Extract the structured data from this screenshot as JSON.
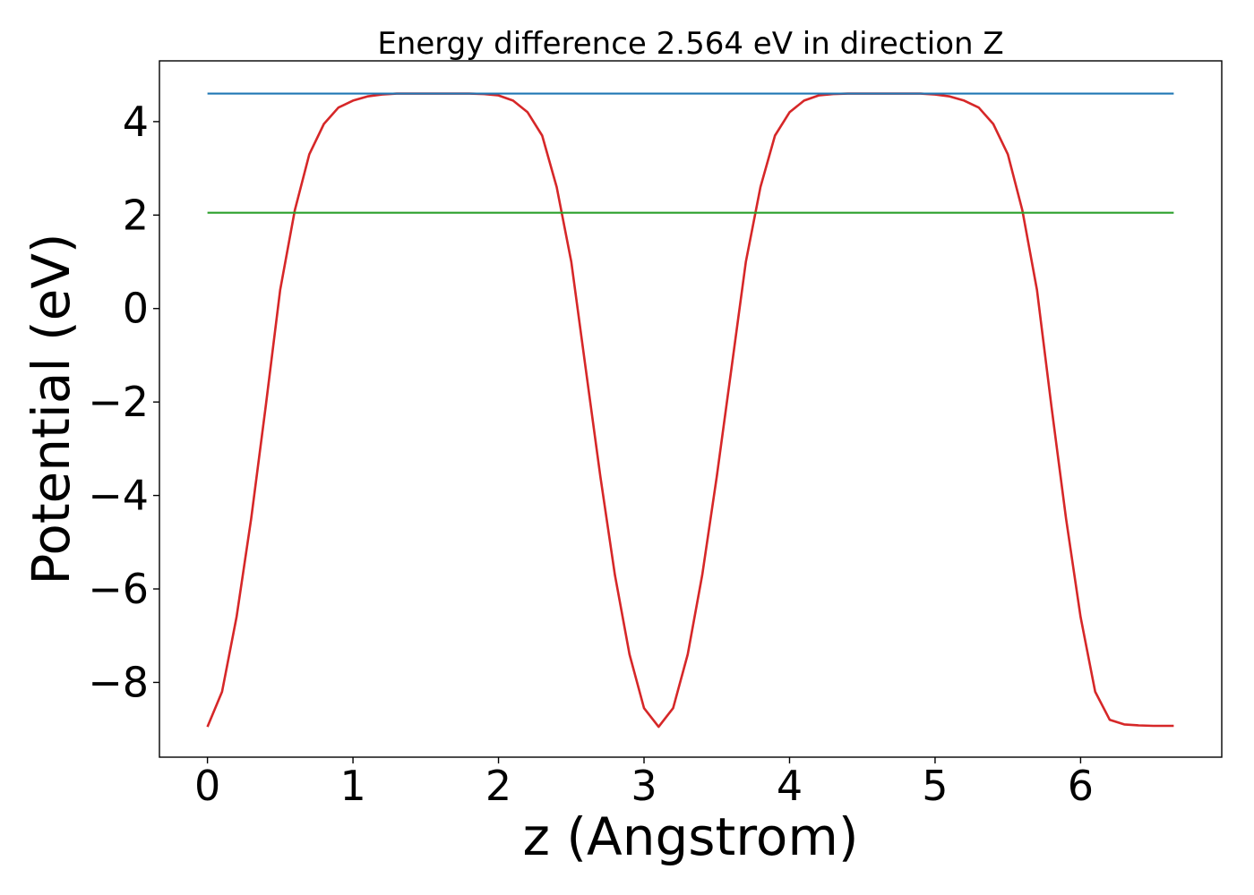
{
  "chart_data": {
    "type": "line",
    "title": "Energy difference 2.564 eV in direction Z",
    "xlabel": "z (Angstrom)",
    "ylabel": "Potential (eV)",
    "xlim": [
      -0.33,
      6.97
    ],
    "ylim": [
      -9.6,
      5.3
    ],
    "xticks": [
      0,
      1,
      2,
      3,
      4,
      5,
      6
    ],
    "xtick_labels": [
      "0",
      "1",
      "2",
      "3",
      "4",
      "5",
      "6"
    ],
    "yticks": [
      -8,
      -6,
      -4,
      -2,
      0,
      2,
      4
    ],
    "ytick_labels": [
      "−8",
      "−6",
      "−4",
      "−2",
      "0",
      "2",
      "4"
    ],
    "grid": false,
    "legend": "none",
    "x_range": [
      0,
      6.64
    ],
    "series": [
      {
        "color": "#d62728",
        "x": [
          0,
          0.1,
          0.2,
          0.3,
          0.4,
          0.5,
          0.6,
          0.7,
          0.8,
          0.9,
          1.0,
          1.1,
          1.2,
          1.3,
          1.4,
          1.5,
          1.6,
          1.7,
          1.8,
          1.9,
          2.0,
          2.1,
          2.2,
          2.3,
          2.4,
          2.5,
          2.6,
          2.7,
          2.8,
          2.9,
          3.0,
          3.1,
          3.2,
          3.3,
          3.4,
          3.5,
          3.6,
          3.7,
          3.8,
          3.9,
          4.0,
          4.1,
          4.2,
          4.3,
          4.4,
          4.5,
          4.6,
          4.7,
          4.8,
          4.9,
          5.0,
          5.1,
          5.2,
          5.3,
          5.4,
          5.5,
          5.6,
          5.7,
          5.8,
          5.9,
          6.0,
          6.1,
          6.2,
          6.3,
          6.4,
          6.5,
          6.6,
          6.64
        ],
        "y": [
          -8.95,
          -8.2,
          -6.6,
          -4.5,
          -2.1,
          0.4,
          2.1,
          3.3,
          3.95,
          4.3,
          4.45,
          4.54,
          4.58,
          4.6,
          4.6,
          4.6,
          4.6,
          4.6,
          4.6,
          4.59,
          4.56,
          4.45,
          4.2,
          3.7,
          2.6,
          1.0,
          -1.3,
          -3.6,
          -5.7,
          -7.4,
          -8.55,
          -8.95,
          -8.55,
          -7.4,
          -5.7,
          -3.6,
          -1.3,
          1.0,
          2.6,
          3.7,
          4.2,
          4.45,
          4.56,
          4.59,
          4.6,
          4.6,
          4.6,
          4.6,
          4.6,
          4.6,
          4.58,
          4.54,
          4.45,
          4.3,
          3.95,
          3.3,
          2.1,
          0.4,
          -2.1,
          -4.5,
          -6.6,
          -8.2,
          -8.8,
          -8.9,
          -8.92,
          -8.93,
          -8.93,
          -8.93
        ]
      },
      {
        "color": "#1f77b4",
        "constant": 4.6
      },
      {
        "color": "#2ca02c",
        "constant": 2.05
      }
    ]
  }
}
